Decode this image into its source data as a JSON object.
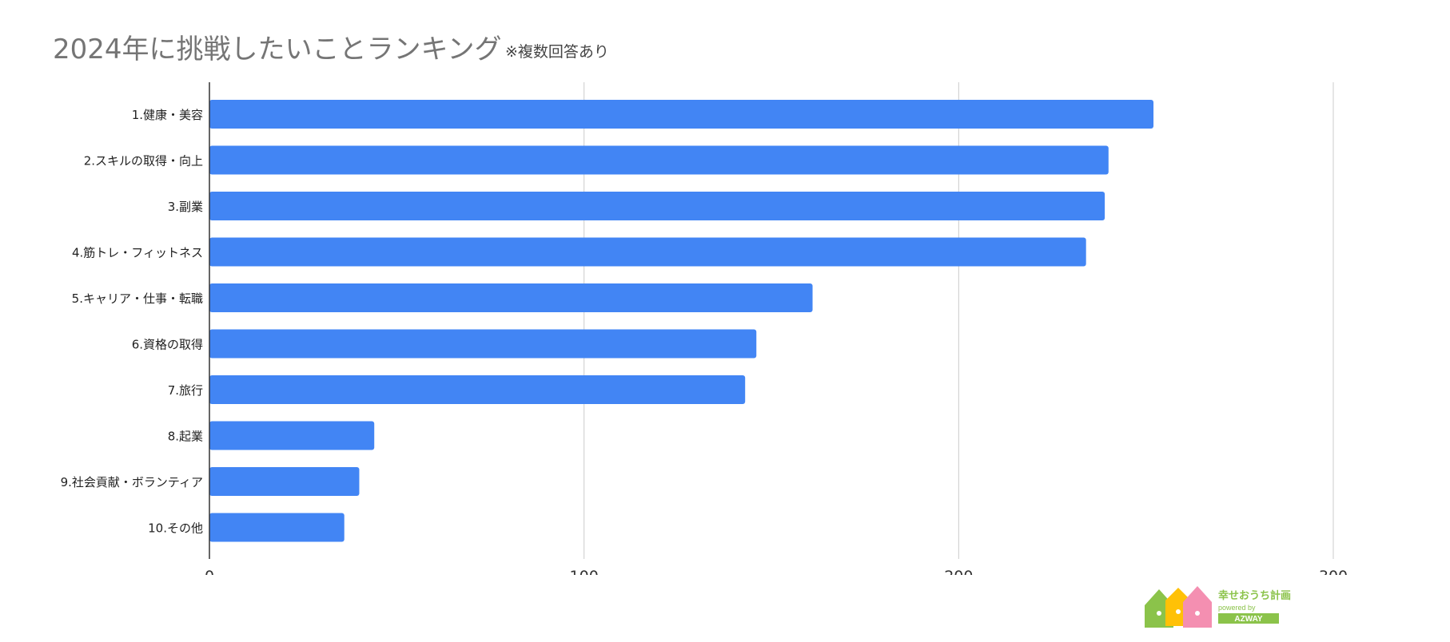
{
  "chart_data": {
    "type": "bar",
    "orientation": "horizontal",
    "title": "2024年に挑戦したいことランキング",
    "note": "※複数回答あり",
    "categories": [
      "1.健康・美容",
      "2.スキルの取得・向上",
      "3.副業",
      "4.筋トレ・フィットネス",
      "5.キャリア・仕事・転職",
      "6.資格の取得",
      "7.旅行",
      "8.起業",
      "9.社会貢献・ボランティア",
      "10.その他"
    ],
    "values": [
      252,
      240,
      239,
      234,
      161,
      146,
      143,
      44,
      40,
      36
    ],
    "xlim": [
      0,
      300
    ],
    "xticks": [
      0,
      100,
      200,
      300
    ],
    "xlabel": "",
    "ylabel": "",
    "grid": true,
    "bar_color": "#4285f4",
    "grid_color": "#cccccc"
  },
  "logo": {
    "name": "幸せおうち計画",
    "sub": "powered by",
    "brand": "AZWAY"
  }
}
